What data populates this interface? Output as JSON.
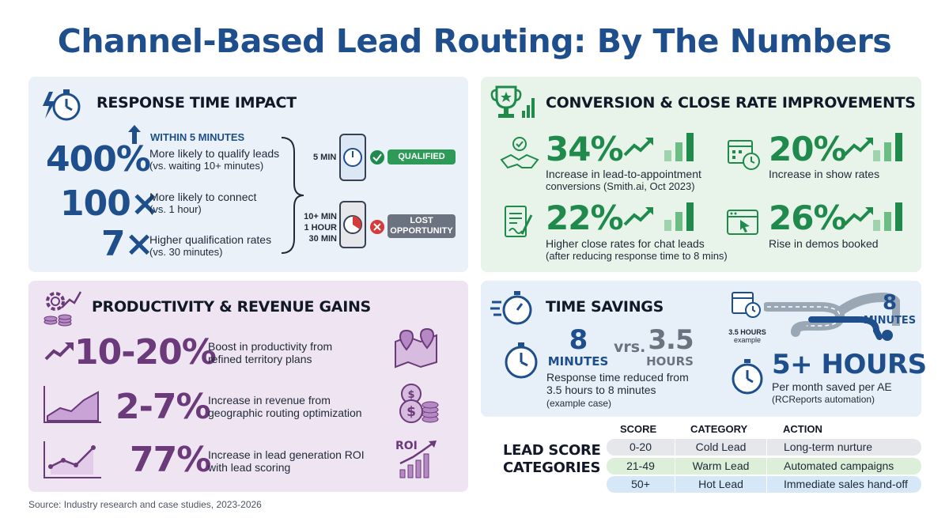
{
  "title": "Channel-Based Lead Routing: By The Numbers",
  "colors": {
    "title": "#1e4f8c",
    "blue": "#1e4f8c",
    "green": "#1f8a4c",
    "purple": "#6b3a7a",
    "red": "#d63b3b"
  },
  "response": {
    "heading": "RESPONSE TIME IMPACT",
    "within": "WITHIN 5 MINUTES",
    "stats": [
      {
        "value": "400%",
        "line1": "More likely to qualify leads",
        "line2": "(vs. waiting 10+ minutes)"
      },
      {
        "value": "100×",
        "line1": "More likely to connect",
        "line2": "(vs. 1 hour)"
      },
      {
        "value": "7×",
        "line1": "Higher qualification rates",
        "line2": "(vs. 30 minutes)"
      }
    ],
    "fast_label": "5 MIN",
    "qualified": "QUALIFIED",
    "slow_labels": [
      "10+ MIN",
      "1 HOUR",
      "30 MIN"
    ],
    "lost_line1": "LOST",
    "lost_line2": "OPPORTUNITY"
  },
  "conversion": {
    "heading": "CONVERSION & CLOSE RATE IMPROVEMENTS",
    "stats": [
      {
        "value": "34%",
        "line1": "Increase in lead-to-appointment",
        "line2": "conversions (Smith.ai, Oct 2023)",
        "icon": "handshake-icon"
      },
      {
        "value": "20%",
        "line1": "Increase in show rates",
        "line2": "",
        "icon": "calendar-clock-icon"
      },
      {
        "value": "22%",
        "line1": "Higher close rates for chat leads",
        "line2": "(after reducing response time to 8 mins)",
        "icon": "document-pen-icon"
      },
      {
        "value": "26%",
        "line1": "Rise in demos booked",
        "line2": "",
        "icon": "browser-cursor-icon"
      }
    ]
  },
  "productivity": {
    "heading": "PRODUCTIVITY & REVENUE GAINS",
    "stats": [
      {
        "value": "10-20%",
        "line1": "Boost in productivity from",
        "line2": "refined territory plans"
      },
      {
        "value": "2-7%",
        "line1": "Increase in revenue from",
        "line2": "geographic routing optimization"
      },
      {
        "value": "77%",
        "line1": "Increase in lead generation ROI",
        "line2": "with lead scoring"
      }
    ],
    "roi_label": "ROI"
  },
  "time": {
    "heading": "TIME SAVINGS",
    "from_value": "8",
    "from_unit": "MINUTES",
    "vs": "vrs.",
    "to_value": "3.5",
    "to_unit": "HOURS",
    "line1": "Response time reduced from",
    "line2": "3.5 hours to 8 minutes",
    "line3": "(example case)",
    "road_start_1": "3.5 HOURS",
    "road_start_2": "example",
    "road_end_value": "8",
    "road_end_unit": "MINUTES",
    "saved_value": "5+ HOURS",
    "saved_line1": "Per month saved per AE",
    "saved_line2": "(RCReports automation)"
  },
  "lead_score": {
    "label_line1": "LEAD SCORE",
    "label_line2": "CATEGORIES",
    "headers": [
      "SCORE",
      "CATEGORY",
      "ACTION"
    ],
    "rows": [
      {
        "score": "0-20",
        "category": "Cold Lead",
        "action": "Long-term nurture",
        "color": "#e5e7eb"
      },
      {
        "score": "21-49",
        "category": "Warm Lead",
        "action": "Automated campaigns",
        "color": "#dcefd9"
      },
      {
        "score": "50+",
        "category": "Hot Lead",
        "action": "Immediate sales hand-off",
        "color": "#d6e8f7"
      }
    ]
  },
  "source": "Source: Industry research and case studies, 2023-2026"
}
